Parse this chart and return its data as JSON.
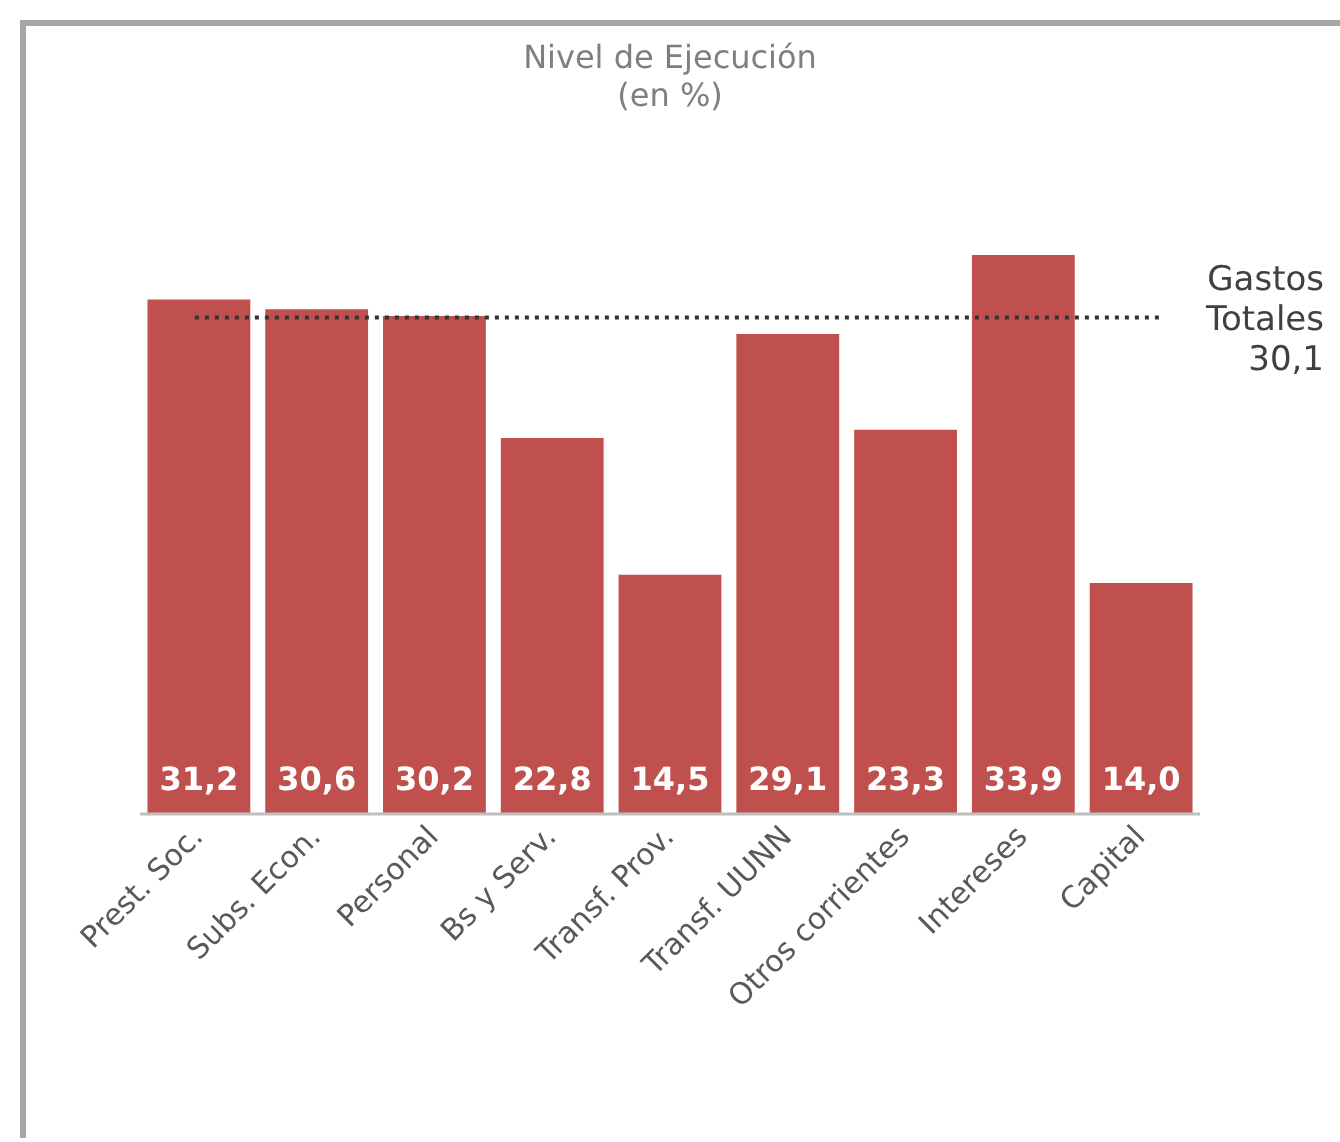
{
  "chart_data": {
    "type": "bar",
    "title": "Nivel de Ejecución",
    "subtitle": "(en %)",
    "categories": [
      "Prest. Soc.",
      "Subs. Econ.",
      "Personal",
      "Bs y Serv.",
      "Transf. Prov.",
      "Transf. UUNN",
      "Otros corrientes",
      "Intereses",
      "Capital"
    ],
    "values": [
      31.2,
      30.6,
      30.2,
      22.8,
      14.5,
      29.1,
      23.3,
      33.9,
      14.0
    ],
    "value_labels": [
      "31,2",
      "30,6",
      "30,2",
      "22,8",
      "14,5",
      "29,1",
      "23,3",
      "33,9",
      "14,0"
    ],
    "color": "#c0504d",
    "grid": false,
    "legend": false,
    "ref_lines": [
      {
        "axis": "y",
        "value": 30.1,
        "label": "Gastos Totales 30,1",
        "line_style": "dotted",
        "color": "#333333"
      }
    ]
  }
}
